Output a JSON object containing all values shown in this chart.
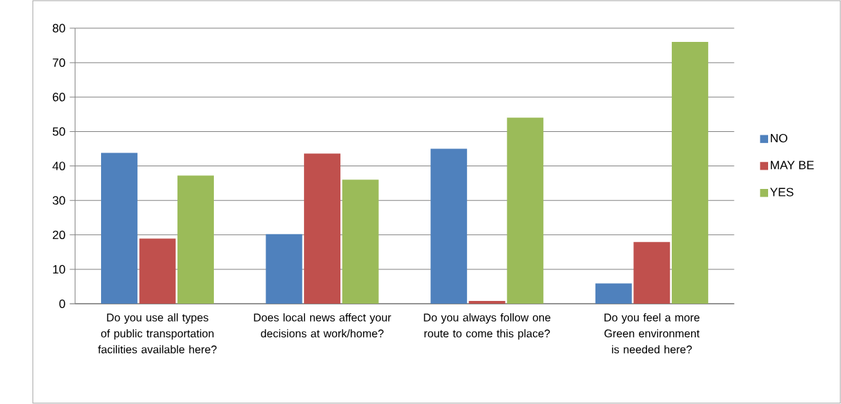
{
  "chart_data": {
    "type": "bar",
    "categories": [
      "Do you use all types of public transportation facilities available here?",
      "Does local news affect your decisions at work/home?",
      "Do you always follow one route to come this place?",
      "Do you feel a more Green environment is needed here?"
    ],
    "series": [
      {
        "name": "NO",
        "color": "#4f81bd",
        "values": [
          43.8,
          20.2,
          45.0,
          5.9
        ]
      },
      {
        "name": "MAY BE",
        "color": "#c0504d",
        "values": [
          18.9,
          43.6,
          0.8,
          17.9
        ]
      },
      {
        "name": "YES",
        "color": "#9bbb59",
        "values": [
          37.2,
          36.0,
          54.0,
          76.0
        ]
      }
    ],
    "ylim": [
      0,
      80
    ],
    "yticks": [
      0,
      10,
      20,
      30,
      40,
      50,
      60,
      70,
      80
    ],
    "grid": "y",
    "legend": "right"
  }
}
